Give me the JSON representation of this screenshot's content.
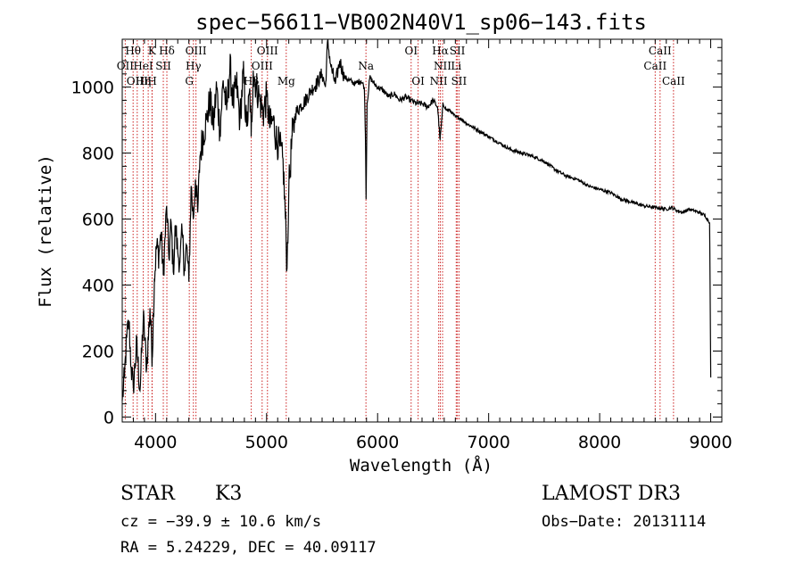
{
  "chart_data": {
    "type": "line",
    "title": "spec−56611−VB002N40V1_sp06−143.fits",
    "xlabel": "Wavelength (Å)",
    "ylabel": "Flux (relative)",
    "xlim": [
      3700,
      9100
    ],
    "ylim": [
      -15,
      1145
    ],
    "xticks": [
      4000,
      5000,
      6000,
      7000,
      8000,
      9000
    ],
    "yticks": [
      0,
      200,
      400,
      600,
      800,
      1000
    ],
    "series": [
      {
        "name": "flux",
        "x": [
          3700,
          3720,
          3740,
          3760,
          3780,
          3800,
          3830,
          3860,
          3890,
          3920,
          3950,
          3970,
          3990,
          4010,
          4030,
          4050,
          4070,
          4100,
          4120,
          4140,
          4160,
          4180,
          4200,
          4220,
          4240,
          4260,
          4280,
          4300,
          4320,
          4340,
          4360,
          4380,
          4400,
          4430,
          4460,
          4490,
          4520,
          4550,
          4580,
          4610,
          4640,
          4670,
          4700,
          4730,
          4760,
          4790,
          4820,
          4850,
          4861,
          4880,
          4910,
          4940,
          4970,
          5000,
          5030,
          5060,
          5090,
          5120,
          5150,
          5170,
          5184,
          5200,
          5230,
          5260,
          5300,
          5350,
          5400,
          5450,
          5500,
          5530,
          5550,
          5580,
          5620,
          5660,
          5700,
          5750,
          5800,
          5850,
          5880,
          5890,
          5896,
          5905,
          5930,
          5970,
          6000,
          6050,
          6100,
          6150,
          6200,
          6250,
          6300,
          6350,
          6400,
          6450,
          6500,
          6540,
          6563,
          6590,
          6620,
          6650,
          6700,
          6750,
          6800,
          6850,
          6900,
          7000,
          7100,
          7200,
          7300,
          7400,
          7500,
          7600,
          7700,
          7800,
          7900,
          8000,
          8100,
          8200,
          8300,
          8400,
          8500,
          8600,
          8650,
          8700,
          8750,
          8800,
          8850,
          8900,
          8950,
          8990,
          9000
        ],
        "y": [
          50,
          120,
          240,
          290,
          150,
          90,
          220,
          80,
          300,
          150,
          330,
          180,
          420,
          520,
          490,
          560,
          430,
          640,
          480,
          590,
          440,
          580,
          500,
          470,
          560,
          450,
          520,
          410,
          700,
          600,
          720,
          620,
          790,
          860,
          900,
          960,
          880,
          1000,
          870,
          1020,
          930,
          1060,
          950,
          1010,
          900,
          1040,
          880,
          980,
          850,
          1050,
          1000,
          960,
          920,
          970,
          880,
          900,
          840,
          820,
          760,
          600,
          450,
          690,
          850,
          920,
          940,
          960,
          990,
          1010,
          1040,
          1000,
          1140,
          1060,
          1010,
          1080,
          1030,
          1020,
          1010,
          1020,
          1000,
          860,
          660,
          950,
          1030,
          1010,
          1000,
          990,
          970,
          980,
          960,
          970,
          960,
          950,
          950,
          940,
          960,
          940,
          840,
          950,
          930,
          930,
          910,
          905,
          890,
          880,
          870,
          850,
          830,
          810,
          800,
          790,
          775,
          750,
          730,
          720,
          700,
          690,
          680,
          660,
          650,
          640,
          635,
          630,
          635,
          625,
          620,
          630,
          625,
          620,
          610,
          590,
          120
        ]
      }
    ],
    "lines": [
      {
        "name": "line-oii",
        "x": 3727
      },
      {
        "name": "line-htheta",
        "x": 3798
      },
      {
        "name": "line-oiii-a",
        "x": 3835
      },
      {
        "name": "line-heta",
        "x": 3889
      },
      {
        "name": "line-hei",
        "x": 3934
      },
      {
        "name": "line-k",
        "x": 3968
      },
      {
        "name": "line-h",
        "x": 3970
      },
      {
        "name": "line-sii-a",
        "x": 4070
      },
      {
        "name": "line-hdelta",
        "x": 4102
      },
      {
        "name": "line-g",
        "x": 4304
      },
      {
        "name": "line-hgamma",
        "x": 4341
      },
      {
        "name": "line-oiii-b",
        "x": 4364
      },
      {
        "name": "line-hbeta",
        "x": 4862
      },
      {
        "name": "line-oiii-c",
        "x": 4960
      },
      {
        "name": "line-oiii-d",
        "x": 5008
      },
      {
        "name": "line-mg",
        "x": 5177
      },
      {
        "name": "line-na",
        "x": 5895
      },
      {
        "name": "line-oi-a",
        "x": 6302
      },
      {
        "name": "line-oi-b",
        "x": 6365
      },
      {
        "name": "line-nii-a",
        "x": 6550
      },
      {
        "name": "line-halpha",
        "x": 6565
      },
      {
        "name": "line-nii-b",
        "x": 6585
      },
      {
        "name": "line-li",
        "x": 6708
      },
      {
        "name": "line-sii-b",
        "x": 6718
      },
      {
        "name": "line-sii-c",
        "x": 6733
      },
      {
        "name": "line-caii-a",
        "x": 8500
      },
      {
        "name": "line-caii-b",
        "x": 8544
      },
      {
        "name": "line-caii-c",
        "x": 8665
      }
    ],
    "line_labels": [
      {
        "text": "Hθ",
        "x": 3798,
        "row": 1
      },
      {
        "text": "K",
        "x": 3968,
        "row": 1
      },
      {
        "text": "Hδ",
        "x": 4102,
        "row": 1
      },
      {
        "text": "OIII",
        "x": 4364,
        "row": 1
      },
      {
        "text": "OIII",
        "x": 5008,
        "row": 1
      },
      {
        "text": "OI",
        "x": 6302,
        "row": 1
      },
      {
        "text": "Hα",
        "x": 6565,
        "row": 1
      },
      {
        "text": "SII",
        "x": 6718,
        "row": 1
      },
      {
        "text": "CaII",
        "x": 8544,
        "row": 1
      },
      {
        "text": "OII",
        "x": 3727,
        "row": 2
      },
      {
        "text": "HeI",
        "x": 3889,
        "row": 2
      },
      {
        "text": "SII",
        "x": 4070,
        "row": 2
      },
      {
        "text": "Hγ",
        "x": 4341,
        "row": 2
      },
      {
        "text": "OIII",
        "x": 4960,
        "row": 2
      },
      {
        "text": "Na",
        "x": 5895,
        "row": 2
      },
      {
        "text": "NII",
        "x": 6585,
        "row": 2
      },
      {
        "text": "Li",
        "x": 6708,
        "row": 2
      },
      {
        "text": "CaII",
        "x": 8500,
        "row": 2
      },
      {
        "text": "OIII",
        "x": 3835,
        "row": 3
      },
      {
        "text": "Hη",
        "x": 3889,
        "row": 3
      },
      {
        "text": "H",
        "x": 3970,
        "row": 3
      },
      {
        "text": "G",
        "x": 4304,
        "row": 3
      },
      {
        "text": "Hβ",
        "x": 4862,
        "row": 3
      },
      {
        "text": "Mg",
        "x": 5177,
        "row": 3
      },
      {
        "text": "OI",
        "x": 6365,
        "row": 3
      },
      {
        "text": "NII",
        "x": 6550,
        "row": 3
      },
      {
        "text": "SII",
        "x": 6733,
        "row": 3
      },
      {
        "text": "CaII",
        "x": 8665,
        "row": 3
      }
    ],
    "line_color": "#cc2222"
  },
  "info": {
    "object_class": "STAR",
    "subclass": "K3",
    "survey": "LAMOST DR3",
    "cz": "cz = −39.9 ± 10.6 km/s",
    "obs_date": "Obs−Date: 20131114",
    "radec": "RA =   5.24229, DEC =  40.09117"
  }
}
